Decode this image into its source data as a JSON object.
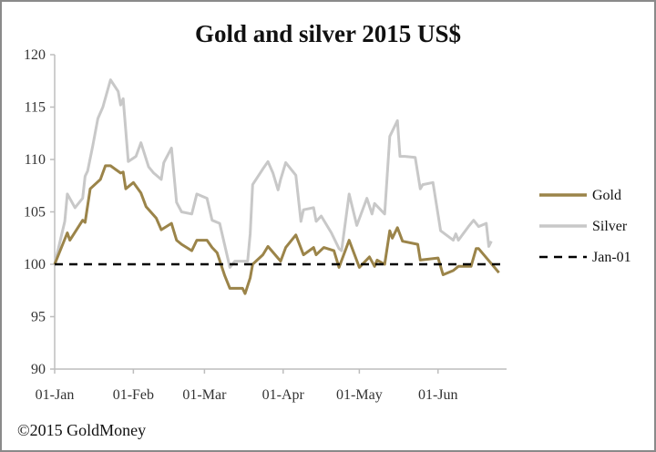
{
  "chart_data": {
    "type": "line",
    "title": "Gold and silver 2015 US$",
    "xlabel": "",
    "ylabel": "",
    "xlim": [
      "2015-01-01",
      "2015-06-28"
    ],
    "ylim": [
      90,
      120
    ],
    "yticks": [
      90,
      95,
      100,
      105,
      110,
      115,
      120
    ],
    "xticks": [
      {
        "date": "2015-01-01",
        "label": "01-Jan"
      },
      {
        "date": "2015-02-01",
        "label": "01-Feb"
      },
      {
        "date": "2015-03-01",
        "label": "01-Mar"
      },
      {
        "date": "2015-04-01",
        "label": "01-Apr"
      },
      {
        "date": "2015-05-01",
        "label": "01-May"
      },
      {
        "date": "2015-06-01",
        "label": "01-Jun"
      }
    ],
    "grid": false,
    "legend_position": "right",
    "series": [
      {
        "name": "Gold",
        "color": "#9b8449",
        "style": "solid",
        "points": [
          [
            "2015-01-01",
            100
          ],
          [
            "2015-01-06",
            103
          ],
          [
            "2015-01-07",
            102.3
          ],
          [
            "2015-01-12",
            104.2
          ],
          [
            "2015-01-13",
            104
          ],
          [
            "2015-01-15",
            107.2
          ],
          [
            "2015-01-19",
            108.1
          ],
          [
            "2015-01-21",
            109.4
          ],
          [
            "2015-01-23",
            109.4
          ],
          [
            "2015-01-27",
            108.7
          ],
          [
            "2015-01-28",
            108.8
          ],
          [
            "2015-01-29",
            107.2
          ],
          [
            "2015-02-01",
            107.8
          ],
          [
            "2015-02-04",
            106.8
          ],
          [
            "2015-02-06",
            105.5
          ],
          [
            "2015-02-10",
            104.4
          ],
          [
            "2015-02-12",
            103.3
          ],
          [
            "2015-02-16",
            103.9
          ],
          [
            "2015-02-18",
            102.3
          ],
          [
            "2015-02-20",
            101.9
          ],
          [
            "2015-02-24",
            101.3
          ],
          [
            "2015-02-26",
            102.3
          ],
          [
            "2015-03-02",
            102.3
          ],
          [
            "2015-03-04",
            101.6
          ],
          [
            "2015-03-06",
            101.1
          ],
          [
            "2015-03-09",
            98.9
          ],
          [
            "2015-03-11",
            97.7
          ],
          [
            "2015-03-16",
            97.7
          ],
          [
            "2015-03-17",
            97.2
          ],
          [
            "2015-03-19",
            98.7
          ],
          [
            "2015-03-20",
            100
          ],
          [
            "2015-03-24",
            100.9
          ],
          [
            "2015-03-26",
            101.7
          ],
          [
            "2015-03-31",
            100.3
          ],
          [
            "2015-04-02",
            101.6
          ],
          [
            "2015-04-06",
            102.8
          ],
          [
            "2015-04-09",
            100.9
          ],
          [
            "2015-04-13",
            101.6
          ],
          [
            "2015-04-14",
            100.9
          ],
          [
            "2015-04-17",
            101.6
          ],
          [
            "2015-04-21",
            101.3
          ],
          [
            "2015-04-23",
            99.7
          ],
          [
            "2015-04-27",
            102.3
          ],
          [
            "2015-05-01",
            99.7
          ],
          [
            "2015-05-05",
            100.7
          ],
          [
            "2015-05-07",
            99.8
          ],
          [
            "2015-05-08",
            100.4
          ],
          [
            "2015-05-11",
            100
          ],
          [
            "2015-05-13",
            103.2
          ],
          [
            "2015-05-14",
            102.5
          ],
          [
            "2015-05-16",
            103.5
          ],
          [
            "2015-05-18",
            102.2
          ],
          [
            "2015-05-24",
            101.9
          ],
          [
            "2015-05-25",
            100.4
          ],
          [
            "2015-06-01",
            100.6
          ],
          [
            "2015-06-03",
            99
          ],
          [
            "2015-06-07",
            99.4
          ],
          [
            "2015-06-09",
            99.8
          ],
          [
            "2015-06-14",
            99.8
          ],
          [
            "2015-06-16",
            101.5
          ],
          [
            "2015-06-17",
            101.5
          ],
          [
            "2015-06-25",
            99.2
          ]
        ]
      },
      {
        "name": "Silver",
        "color": "#c8c8c8",
        "style": "solid",
        "points": [
          [
            "2015-01-01",
            100
          ],
          [
            "2015-01-05",
            104.1
          ],
          [
            "2015-01-06",
            106.7
          ],
          [
            "2015-01-09",
            105.4
          ],
          [
            "2015-01-12",
            106.3
          ],
          [
            "2015-01-13",
            108.4
          ],
          [
            "2015-01-14",
            108.9
          ],
          [
            "2015-01-16",
            111.3
          ],
          [
            "2015-01-18",
            113.9
          ],
          [
            "2015-01-20",
            115
          ],
          [
            "2015-01-23",
            117.6
          ],
          [
            "2015-01-26",
            116.5
          ],
          [
            "2015-01-27",
            115.2
          ],
          [
            "2015-01-28",
            115.8
          ],
          [
            "2015-01-30",
            109.8
          ],
          [
            "2015-02-02",
            110.3
          ],
          [
            "2015-02-04",
            111.6
          ],
          [
            "2015-02-07",
            109.3
          ],
          [
            "2015-02-09",
            108.7
          ],
          [
            "2015-02-12",
            108.1
          ],
          [
            "2015-02-13",
            109.7
          ],
          [
            "2015-02-16",
            111.1
          ],
          [
            "2015-02-18",
            105.9
          ],
          [
            "2015-02-20",
            105
          ],
          [
            "2015-02-24",
            104.8
          ],
          [
            "2015-02-26",
            106.7
          ],
          [
            "2015-03-02",
            106.3
          ],
          [
            "2015-03-04",
            104.2
          ],
          [
            "2015-03-07",
            103.9
          ],
          [
            "2015-03-11",
            99.7
          ],
          [
            "2015-03-13",
            100.3
          ],
          [
            "2015-03-18",
            100.3
          ],
          [
            "2015-03-19",
            102.9
          ],
          [
            "2015-03-20",
            107.6
          ],
          [
            "2015-03-24",
            109.1
          ],
          [
            "2015-03-26",
            109.8
          ],
          [
            "2015-03-28",
            108.7
          ],
          [
            "2015-03-30",
            107.1
          ],
          [
            "2015-03-31",
            108.1
          ],
          [
            "2015-04-02",
            109.7
          ],
          [
            "2015-04-06",
            108.5
          ],
          [
            "2015-04-08",
            104.1
          ],
          [
            "2015-04-09",
            105.2
          ],
          [
            "2015-04-13",
            105.4
          ],
          [
            "2015-04-14",
            104.1
          ],
          [
            "2015-04-16",
            104.6
          ],
          [
            "2015-04-20",
            103
          ],
          [
            "2015-04-23",
            101.5
          ],
          [
            "2015-04-24",
            101.3
          ],
          [
            "2015-04-27",
            106.7
          ],
          [
            "2015-04-30",
            103.7
          ],
          [
            "2015-05-04",
            106.3
          ],
          [
            "2015-05-06",
            104.8
          ],
          [
            "2015-05-07",
            105.8
          ],
          [
            "2015-05-11",
            104.8
          ],
          [
            "2015-05-13",
            112.2
          ],
          [
            "2015-05-16",
            113.7
          ],
          [
            "2015-05-17",
            110.3
          ],
          [
            "2015-05-19",
            110.3
          ],
          [
            "2015-05-23",
            110.2
          ],
          [
            "2015-05-25",
            107.2
          ],
          [
            "2015-05-26",
            107.6
          ],
          [
            "2015-05-30",
            107.8
          ],
          [
            "2015-06-02",
            103.2
          ],
          [
            "2015-06-07",
            102.3
          ],
          [
            "2015-06-08",
            102.9
          ],
          [
            "2015-06-09",
            102.3
          ],
          [
            "2015-06-13",
            103.6
          ],
          [
            "2015-06-15",
            104.2
          ],
          [
            "2015-06-17",
            103.6
          ],
          [
            "2015-06-20",
            103.9
          ],
          [
            "2015-06-21",
            101.7
          ],
          [
            "2015-06-22",
            102.2
          ]
        ]
      },
      {
        "name": "Jan-01",
        "color": "#000000",
        "style": "dashed",
        "points": [
          [
            "2015-01-01",
            100
          ],
          [
            "2015-06-28",
            100
          ]
        ]
      }
    ],
    "footer": "©2015 GoldMoney"
  }
}
